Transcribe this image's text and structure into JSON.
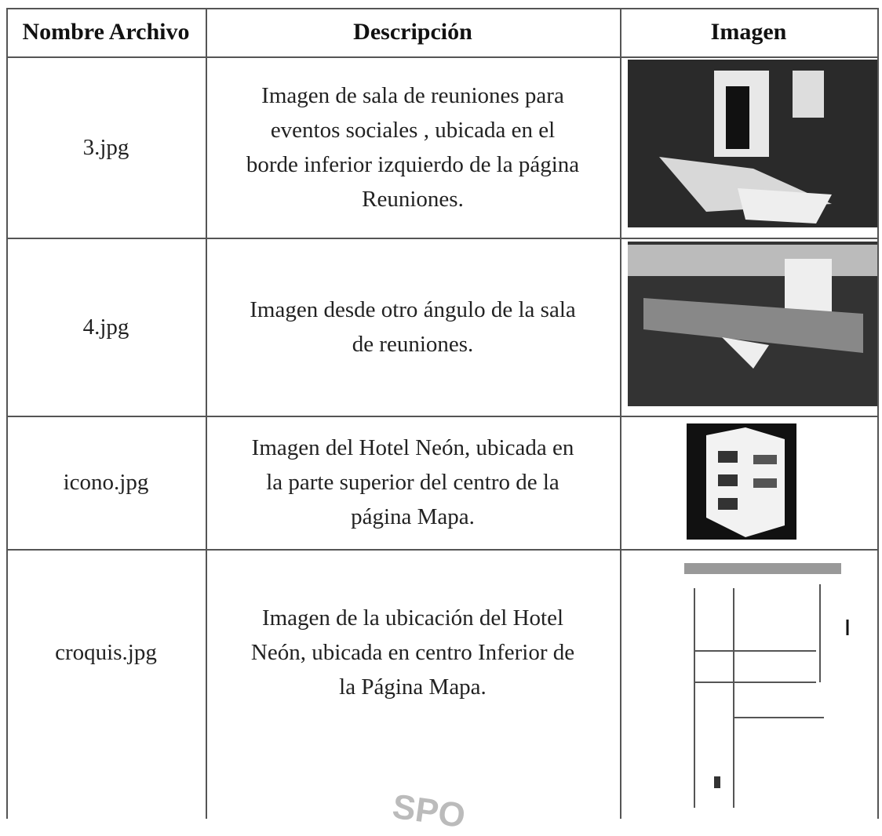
{
  "table": {
    "header": [
      "Nombre Archivo",
      "Descripción",
      "Imagen"
    ],
    "rows": [
      {
        "file": "3.jpg",
        "description": [
          "Imagen de sala de reuniones para",
          "eventos sociales , ubicada en el",
          "borde inferior izquierdo de la página",
          "Reuniones."
        ]
      },
      {
        "file": "4.jpg",
        "description": [
          "Imagen desde otro ángulo de la sala",
          "de reuniones."
        ]
      },
      {
        "file": "icono.jpg",
        "description": [
          "Imagen del Hotel Neón, ubicada en",
          "la parte superior del centro de la",
          "página Mapa."
        ]
      },
      {
        "file": "croquis.jpg",
        "description": [
          "Imagen de la ubicación del Hotel",
          "Neón, ubicada en centro Inferior de",
          "la Página Mapa."
        ]
      }
    ]
  },
  "stamp": "SPO"
}
